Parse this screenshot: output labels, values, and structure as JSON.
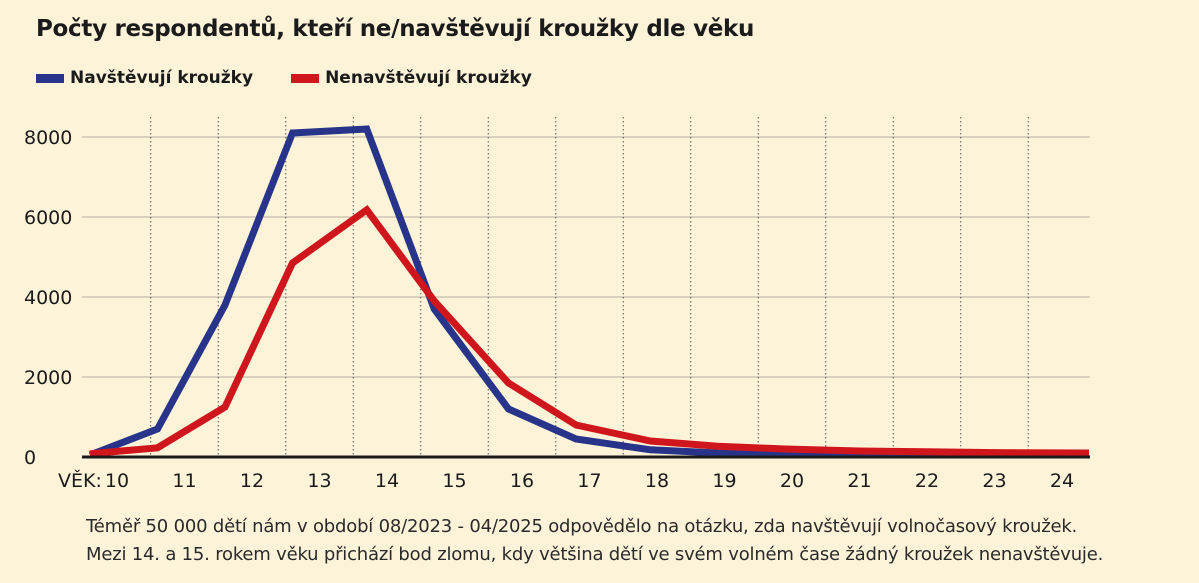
{
  "title": "Počty respondentů, kteří ne/navštěvují kroužky dle věku",
  "legend": [
    {
      "label": "Navštěvují kroužky",
      "color": "#283489"
    },
    {
      "label": "Nenavštěvují kroužky",
      "color": "#d0161d"
    }
  ],
  "footnote": {
    "line1": "Téměř 50 000 dětí nám v období 08/2023 - 04/2025 odpovědělo na otázku, zda navštěvují volnočasový kroužek.",
    "line2": "Mezi 14. a 15. rokem věku přichází bod zlomu, kdy většina dětí ve svém volném čase žádný kroužek nenavštěvuje."
  },
  "chart_data": {
    "type": "line",
    "title": "Počty respondentů, kteří ne/navštěvují kroužky dle věku",
    "xlabel_prefix": "VĚK:",
    "x": [
      10,
      11,
      12,
      13,
      14,
      15,
      16,
      17,
      18,
      19,
      20,
      21,
      22,
      23,
      24
    ],
    "x_tick_labels": [
      "10",
      "11",
      "12",
      "13",
      "14",
      "15",
      "16",
      "17",
      "18",
      "19",
      "20",
      "21",
      "22",
      "23",
      "24"
    ],
    "y_ticks": [
      0,
      2000,
      4000,
      6000,
      8000
    ],
    "y_tick_labels": [
      "0",
      "2000",
      "4000",
      "6000",
      "8000"
    ],
    "ylim": [
      0,
      8000
    ],
    "series": [
      {
        "name": "Navštěvují kroužky",
        "color": "#283489",
        "points": [
          [
            9.6,
            50
          ],
          [
            10.6,
            700
          ],
          [
            11.6,
            3800
          ],
          [
            12.6,
            8100
          ],
          [
            13.7,
            8200
          ],
          [
            14.7,
            3700
          ],
          [
            15.8,
            1200
          ],
          [
            16.8,
            450
          ],
          [
            17.9,
            180
          ],
          [
            18.9,
            100
          ],
          [
            19.9,
            80
          ],
          [
            21,
            70
          ],
          [
            22,
            60
          ],
          [
            23,
            60
          ],
          [
            24.4,
            60
          ]
        ]
      },
      {
        "name": "Nenavštěvují kroužky",
        "color": "#d0161d",
        "points": [
          [
            9.6,
            80
          ],
          [
            10.6,
            230
          ],
          [
            11.6,
            1250
          ],
          [
            12.6,
            4850
          ],
          [
            13.7,
            6180
          ],
          [
            14.7,
            3900
          ],
          [
            15.8,
            1850
          ],
          [
            16.8,
            800
          ],
          [
            17.9,
            400
          ],
          [
            18.9,
            270
          ],
          [
            19.9,
            200
          ],
          [
            21,
            150
          ],
          [
            22,
            130
          ],
          [
            23,
            110
          ],
          [
            24.4,
            100
          ]
        ]
      }
    ],
    "grid": true
  }
}
